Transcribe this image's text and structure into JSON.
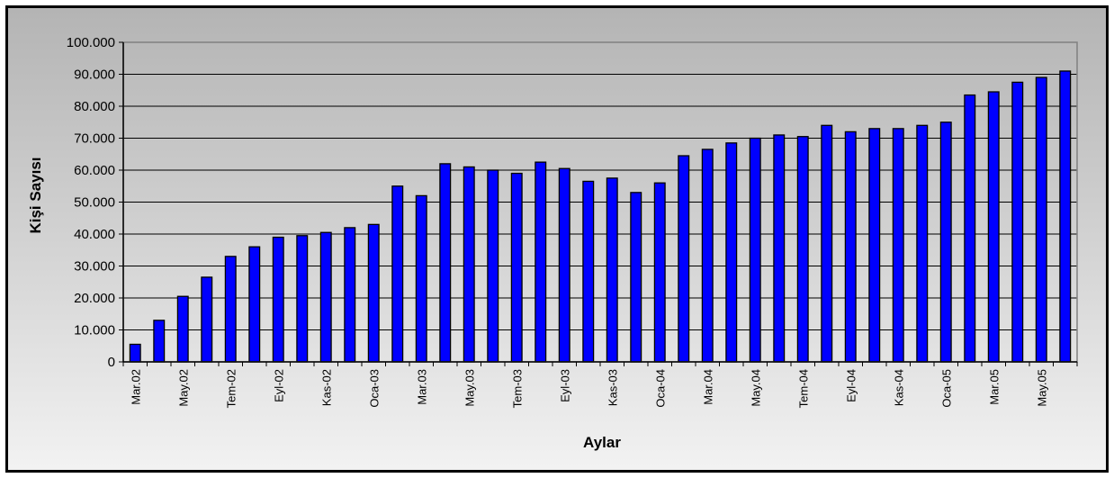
{
  "chart_data": {
    "type": "bar",
    "xlabel": "Aylar",
    "ylabel": "Kişi Sayısı",
    "ylim": [
      0,
      100000
    ],
    "y_ticks": [
      0,
      10000,
      20000,
      30000,
      40000,
      50000,
      60000,
      70000,
      80000,
      90000,
      100000
    ],
    "y_tick_labels": [
      "0",
      "10.000",
      "20.000",
      "30.000",
      "40.000",
      "50.000",
      "60.000",
      "70.000",
      "80.000",
      "90.000",
      "100.000"
    ],
    "grid": true,
    "legend": "none",
    "bar_color": "#0000ff",
    "categories": [
      "Mar.02",
      "",
      "May.02",
      "",
      "Tem-02",
      "",
      "Eyl-02",
      "",
      "Kas-02",
      "",
      "Oca-03",
      "",
      "Mar.03",
      "",
      "May.03",
      "",
      "Tem-03",
      "",
      "Eyl-03",
      "",
      "Kas-03",
      "",
      "Oca-04",
      "",
      "Mar.04",
      "",
      "May.04",
      "",
      "Tem-04",
      "",
      "Eyl-04",
      "",
      "Kas-04",
      "",
      "Oca-05",
      "",
      "Mar.05",
      "",
      "May.05",
      ""
    ],
    "values": [
      5500,
      13000,
      20500,
      26500,
      33000,
      36000,
      39000,
      39500,
      40500,
      42000,
      43000,
      55000,
      52000,
      62000,
      61000,
      60000,
      59000,
      62500,
      60500,
      56500,
      57500,
      53000,
      56000,
      64500,
      66500,
      68500,
      70000,
      71000,
      70500,
      74000,
      72000,
      73000,
      73000,
      74000,
      75000,
      83500,
      84500,
      87500,
      89000,
      91000
    ]
  }
}
